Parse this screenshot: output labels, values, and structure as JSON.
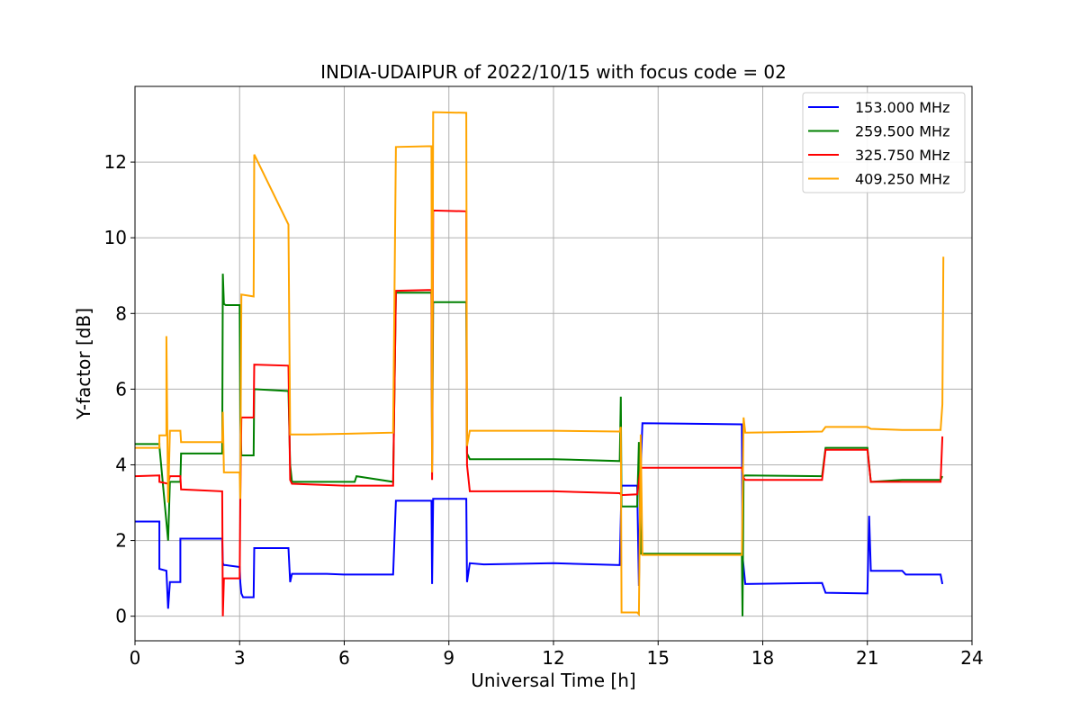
{
  "chart_data": {
    "type": "line",
    "title": "INDIA-UDAIPUR of 2022/10/15 with focus code = 02",
    "xlabel": "Universal Time [h]",
    "ylabel": "Y-factor [dB]",
    "xlim": [
      0,
      24
    ],
    "ylim": [
      -0.65,
      14.0
    ],
    "xticks": [
      0,
      3,
      6,
      9,
      12,
      15,
      18,
      21,
      24
    ],
    "yticks": [
      0,
      2,
      4,
      6,
      8,
      10,
      12
    ],
    "grid": true,
    "legend_position": "top-right",
    "series": [
      {
        "name": "153.000 MHz",
        "color": "#0000ff",
        "x": [
          0,
          0.7,
          0.7,
          0.9,
          0.95,
          1.0,
          1.3,
          1.3,
          2.5,
          2.52,
          2.55,
          2.6,
          3.0,
          3.02,
          3.05,
          3.1,
          3.4,
          3.42,
          4.4,
          4.45,
          4.5,
          5.5,
          6.0,
          7.4,
          7.48,
          8.5,
          8.52,
          8.55,
          9.5,
          9.52,
          9.6,
          10.0,
          12.0,
          13.9,
          13.95,
          14.4,
          14.45,
          14.5,
          14.55,
          17.4,
          17.42,
          17.5,
          19.7,
          19.8,
          21.0,
          21.05,
          21.1,
          21.15,
          22.0,
          22.1,
          23.1,
          23.15
        ],
        "y": [
          2.5,
          2.5,
          1.25,
          1.2,
          0.2,
          0.9,
          0.9,
          2.05,
          2.05,
          1.4,
          1.35,
          1.35,
          1.3,
          0.9,
          0.6,
          0.5,
          0.5,
          1.8,
          1.8,
          0.9,
          1.12,
          1.12,
          1.1,
          1.1,
          3.05,
          3.05,
          0.85,
          3.1,
          3.1,
          0.9,
          1.4,
          1.37,
          1.4,
          1.35,
          3.45,
          3.45,
          0.8,
          3.9,
          5.1,
          5.07,
          1.6,
          0.85,
          0.88,
          0.62,
          0.6,
          2.65,
          1.2,
          1.2,
          1.2,
          1.1,
          1.1,
          0.85
        ]
      },
      {
        "name": "259.500 MHz",
        "color": "#008000",
        "x": [
          0,
          0.7,
          0.7,
          0.95,
          1.0,
          1.3,
          1.32,
          2.5,
          2.52,
          2.55,
          2.6,
          3.0,
          3.02,
          3.05,
          3.4,
          3.42,
          4.4,
          4.45,
          4.5,
          6.0,
          6.3,
          6.35,
          7.4,
          7.48,
          8.5,
          8.52,
          8.55,
          9.5,
          9.52,
          9.6,
          12.0,
          13.9,
          13.93,
          13.95,
          14.4,
          14.45,
          14.5,
          14.55,
          17.4,
          17.42,
          17.45,
          17.5,
          19.7,
          19.8,
          21.0,
          21.1,
          22.0,
          23.1,
          23.15
        ],
        "y": [
          4.55,
          4.55,
          4.5,
          2.0,
          3.55,
          3.55,
          4.3,
          4.3,
          9.05,
          8.25,
          8.22,
          8.22,
          5.2,
          4.25,
          4.25,
          6.0,
          5.95,
          4.0,
          3.55,
          3.55,
          3.55,
          3.7,
          3.55,
          8.55,
          8.55,
          4.0,
          8.3,
          8.3,
          4.3,
          4.15,
          4.15,
          4.1,
          5.8,
          2.9,
          2.9,
          4.6,
          1.65,
          1.65,
          1.65,
          0.0,
          3.7,
          3.72,
          3.7,
          4.45,
          4.45,
          3.55,
          3.6,
          3.6,
          3.7
        ]
      },
      {
        "name": "325.750 MHz",
        "color": "#ff0000",
        "x": [
          0,
          0.7,
          0.7,
          0.95,
          1.0,
          1.3,
          1.32,
          2.5,
          2.52,
          2.55,
          2.6,
          3.0,
          3.02,
          3.05,
          3.4,
          3.42,
          4.4,
          4.45,
          4.5,
          6.0,
          7.4,
          7.48,
          8.5,
          8.52,
          8.55,
          9.5,
          9.52,
          9.6,
          12.0,
          13.9,
          13.95,
          14.4,
          14.45,
          14.5,
          14.55,
          17.4,
          17.45,
          17.5,
          19.7,
          19.8,
          21.0,
          21.1,
          22.0,
          23.1,
          23.15
        ],
        "y": [
          3.7,
          3.72,
          3.55,
          3.5,
          3.7,
          3.7,
          3.35,
          3.3,
          0.0,
          1.0,
          1.0,
          1.0,
          3.0,
          5.25,
          5.25,
          6.65,
          6.62,
          3.6,
          3.5,
          3.45,
          3.45,
          8.6,
          8.62,
          3.6,
          10.72,
          10.7,
          4.0,
          3.3,
          3.3,
          3.25,
          3.2,
          3.22,
          3.55,
          3.92,
          3.92,
          3.92,
          3.65,
          3.6,
          3.6,
          4.4,
          4.4,
          3.55,
          3.55,
          3.55,
          4.75
        ]
      },
      {
        "name": "409.250 MHz",
        "color": "#ffa500",
        "x": [
          0,
          0.7,
          0.7,
          0.9,
          0.9,
          0.93,
          0.95,
          1.0,
          1.3,
          1.32,
          2.5,
          2.52,
          2.55,
          2.6,
          3.0,
          3.02,
          3.05,
          3.4,
          3.42,
          4.4,
          4.45,
          4.5,
          5.0,
          6.0,
          7.4,
          7.48,
          8.5,
          8.52,
          8.55,
          9.5,
          9.52,
          9.6,
          12.0,
          13.9,
          13.93,
          13.95,
          14.4,
          14.45,
          14.5,
          14.55,
          17.4,
          17.45,
          17.5,
          19.7,
          19.8,
          21.0,
          21.1,
          22.0,
          23.1,
          23.15,
          23.18
        ],
        "y": [
          4.45,
          4.45,
          4.78,
          4.78,
          7.4,
          4.7,
          3.0,
          4.9,
          4.9,
          4.6,
          4.6,
          5.4,
          3.8,
          3.8,
          3.8,
          3.1,
          8.5,
          8.45,
          12.2,
          10.35,
          4.8,
          4.8,
          4.8,
          4.82,
          4.85,
          12.4,
          12.42,
          3.8,
          13.32,
          13.3,
          4.5,
          4.9,
          4.9,
          4.88,
          5.0,
          0.1,
          0.1,
          0.05,
          4.8,
          1.62,
          1.62,
          5.25,
          4.85,
          4.88,
          5.0,
          5.0,
          4.95,
          4.92,
          4.92,
          5.6,
          9.5
        ]
      }
    ]
  }
}
